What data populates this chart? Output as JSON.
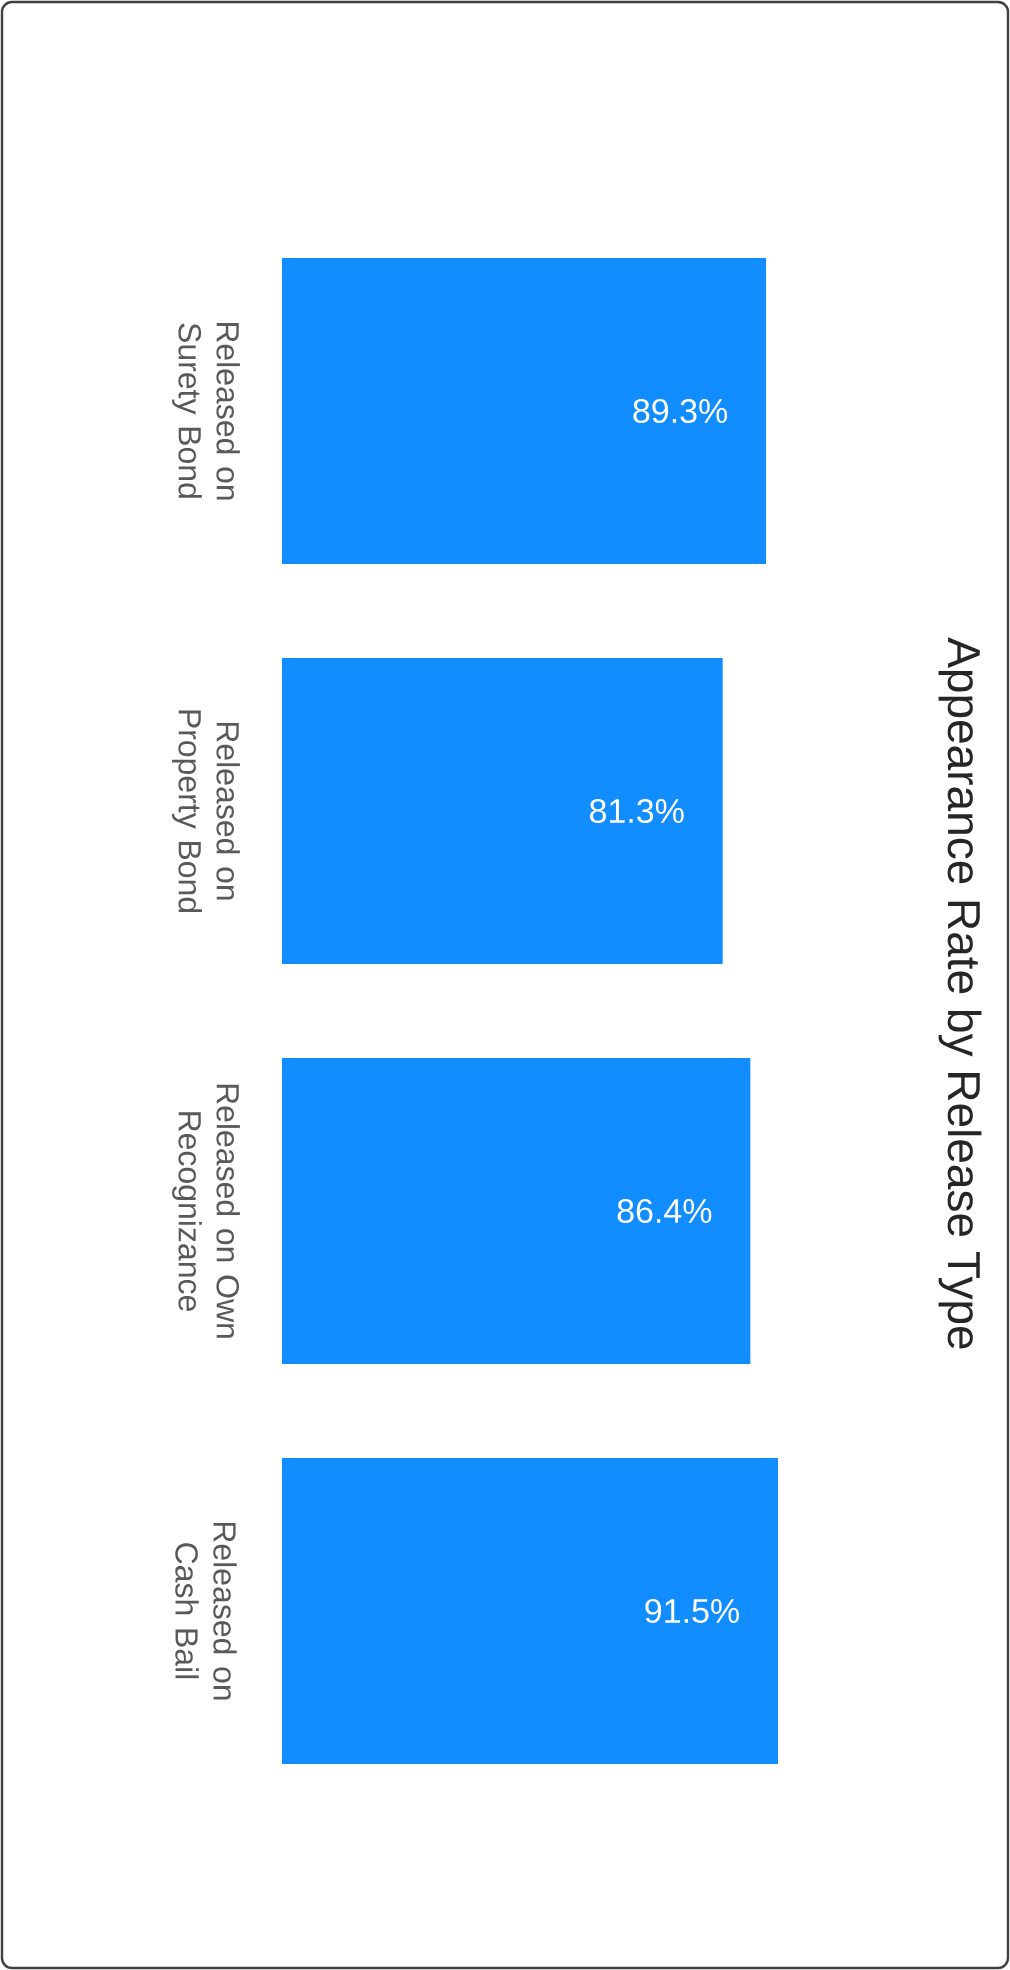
{
  "chart_data": {
    "type": "bar",
    "orientation": "horizontal",
    "title": "Appearance Rate by Release Type",
    "categories": [
      "Released on Surety Bond",
      "Released on Property Bond",
      "Released on Own Recognizance",
      "Released on Cash Bail"
    ],
    "values": [
      89.3,
      81.3,
      86.4,
      91.5
    ],
    "value_labels": [
      "89.3%",
      "81.3%",
      "86.4%",
      "91.5%"
    ],
    "color": "#118dff"
  }
}
